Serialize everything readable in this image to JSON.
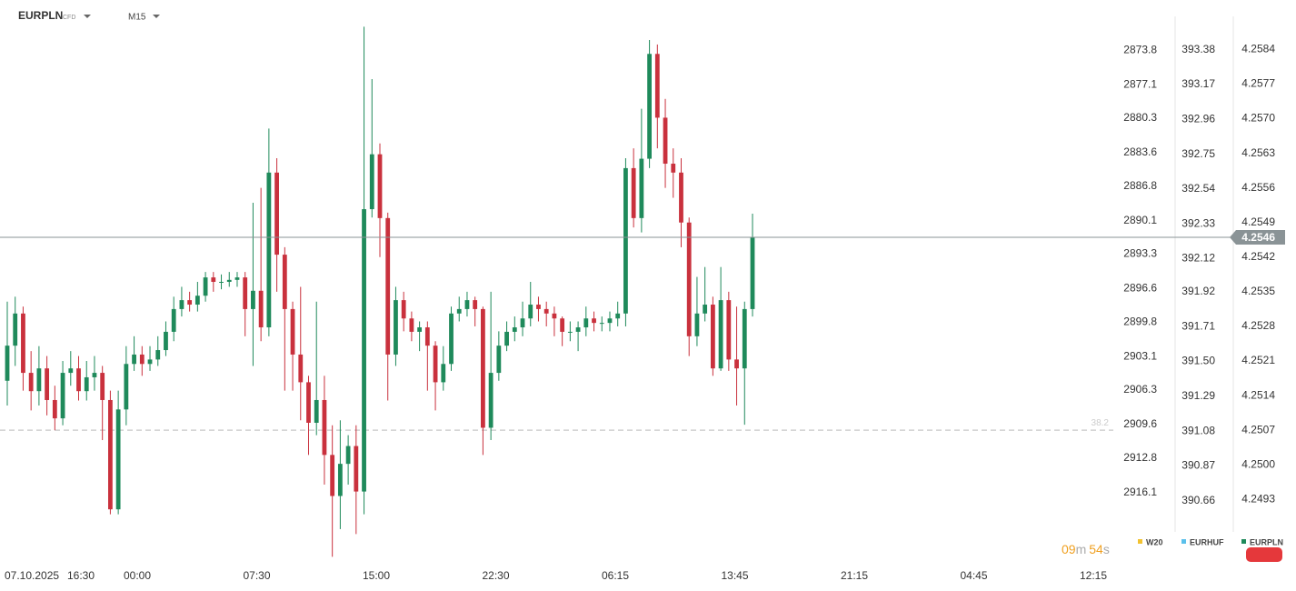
{
  "chart_data": {
    "type": "candlestick",
    "symbol": "EURPLN",
    "symbol_type": "CFD",
    "timeframe": "M15",
    "up_color": "#1f8a5b",
    "down_color": "#c9313d",
    "ylim": [
      4.248,
      4.2594
    ],
    "yticks": [
      4.2584,
      4.2577,
      {
        "value": 4.257,
        "label": "4.2570"
      },
      4.2563,
      4.2556,
      4.2549,
      4.2542,
      4.2535,
      4.2528,
      4.2521,
      4.2514,
      4.2507,
      {
        "value": 4.25,
        "label": "4.2500"
      },
      4.2493
    ],
    "compare_axes": [
      {
        "name": "W20",
        "color": "#f2c230",
        "ylim": [
          2922.9,
          2869.0
        ],
        "yticks": [
          2873.8,
          2877.1,
          2880.3,
          2883.6,
          2886.8,
          2890.1,
          2893.3,
          2896.6,
          2899.8,
          2903.1,
          2906.3,
          2909.6,
          2912.8,
          2916.1
        ]
      },
      {
        "name": "EURHUF",
        "color": "#5bc0eb",
        "ylim": [
          390.28,
          393.68
        ],
        "yticks": [
          393.38,
          393.17,
          392.96,
          392.75,
          392.54,
          392.33,
          392.12,
          391.92,
          391.71,
          {
            "value": 391.5,
            "label": "391.50"
          },
          391.29,
          391.08,
          390.87,
          390.66
        ]
      }
    ],
    "x_labels": [
      "07.10.2025",
      "16:30",
      "00:00",
      "07:30",
      "15:00",
      "22:30",
      "06:15",
      "13:45",
      "21:15",
      "04:45",
      "12:15"
    ],
    "fib_level": {
      "label": "38.2",
      "value": 4.2507
    },
    "countdown": [
      "09",
      "m",
      "54",
      "s"
    ],
    "open": [
      4.2517,
      4.25241,
      4.25306,
      4.25186,
      4.25149,
      4.25195,
      4.25131,
      4.25094,
      4.25186,
      4.25195,
      4.25149,
      4.25177,
      4.25186,
      4.25131,
      4.2491,
      4.25112,
      4.25204,
      4.25223,
      4.25204,
      4.25213,
      4.25232,
      4.25269,
      4.25315,
      4.25333,
      4.25324,
      4.25342,
      4.25379,
      4.2537,
      4.2537,
      4.25374,
      4.25379,
      4.25315,
      4.25352,
      4.25278,
      4.25591,
      4.25425,
      4.25315,
      4.25223,
      4.25167,
      4.25085,
      4.25131,
      4.2502,
      4.24937,
      4.25002,
      4.25038,
      4.24946,
      4.25517,
      4.25628,
      4.25499,
      4.25223,
      4.25333,
      4.25296,
      4.25269,
      4.25278,
      4.25241,
      4.25167,
      4.25204,
      4.25306,
      4.25315,
      4.25333,
      4.25315,
      4.25075,
      4.25186,
      4.25241,
      4.25269,
      4.25278,
      4.25296,
      4.25324,
      4.25315,
      4.25306,
      4.25296,
      4.25269,
      4.25269,
      4.25278,
      4.25296,
      4.25287,
      4.25287,
      4.25296,
      4.25306,
      4.256,
      4.25499,
      4.25619,
      4.25831,
      4.25702,
      4.25609,
      4.25591,
      4.2549,
      4.2526,
      4.25306,
      4.25324,
      4.25195,
      4.25333,
      4.25213,
      4.25195,
      4.25315
    ],
    "high": [
      4.2533,
      4.2534,
      4.2532,
      4.2523,
      4.2524,
      4.2522,
      4.2516,
      4.2521,
      4.2523,
      4.2522,
      4.2521,
      4.2522,
      4.252,
      4.2515,
      4.2515,
      4.2524,
      4.2526,
      4.2524,
      4.2524,
      4.2526,
      4.2529,
      4.2534,
      4.2536,
      4.2535,
      4.2537,
      4.2539,
      4.2539,
      4.25385,
      4.2539,
      4.2539,
      4.2539,
      4.2553,
      4.2556,
      4.2568,
      4.2562,
      4.2544,
      4.2533,
      4.2536,
      4.2518,
      4.2533,
      4.2518,
      4.2508,
      4.2509,
      4.2506,
      4.2508,
      4.25886,
      4.2578,
      4.2565,
      4.2551,
      4.2536,
      4.2535,
      4.2531,
      4.2529,
      4.2529,
      4.2525,
      4.2524,
      4.2532,
      4.2534,
      4.2535,
      4.2534,
      4.2532,
      4.2535,
      4.2527,
      4.2529,
      4.253,
      4.2533,
      4.2537,
      4.2534,
      4.2533,
      4.2532,
      4.253,
      4.2529,
      4.2529,
      4.2532,
      4.2531,
      4.253,
      4.2531,
      4.2533,
      4.2562,
      4.2564,
      4.2572,
      4.25859,
      4.2585,
      4.2574,
      4.2564,
      4.2562,
      4.255,
      4.2538,
      4.254,
      4.2534,
      4.254,
      4.2535,
      4.2532,
      4.2533,
      4.25508
    ],
    "low": [
      4.2512,
      4.252,
      4.2515,
      4.2511,
      4.2512,
      4.251,
      4.2507,
      4.2508,
      4.2516,
      4.2513,
      4.2513,
      4.2515,
      4.2505,
      4.249,
      4.249,
      4.2508,
      4.2519,
      4.2518,
      4.2519,
      4.252,
      4.2522,
      4.2525,
      4.253,
      4.2531,
      4.2531,
      4.2533,
      4.2535,
      4.25355,
      4.2536,
      4.2536,
      4.2526,
      4.252,
      4.2525,
      4.2526,
      4.2535,
      4.2515,
      4.2515,
      4.2509,
      4.2502,
      4.2506,
      4.2496,
      4.24814,
      4.2487,
      4.2496,
      4.2486,
      4.249,
      4.255,
      4.2542,
      4.2513,
      4.252,
      4.2527,
      4.2525,
      4.2523,
      4.2515,
      4.2511,
      4.2515,
      4.2519,
      4.2529,
      4.253,
      4.2528,
      4.2502,
      4.2505,
      4.2517,
      4.2523,
      4.2525,
      4.2526,
      4.2528,
      4.2529,
      4.2528,
      4.2526,
      4.2524,
      4.2525,
      4.2523,
      4.2526,
      4.2527,
      4.2527,
      4.2527,
      4.2528,
      4.2528,
      4.2548,
      4.2547,
      4.256,
      4.2564,
      4.2556,
      4.2554,
      4.2544,
      4.2522,
      4.2524,
      4.2529,
      4.2518,
      4.2519,
      4.2519,
      4.2512,
      4.25081,
      4.253
    ],
    "close": [
      4.25241,
      4.25306,
      4.25186,
      4.25149,
      4.25195,
      4.25131,
      4.25094,
      4.25186,
      4.25195,
      4.25149,
      4.25177,
      4.25186,
      4.25131,
      4.2491,
      4.25112,
      4.25204,
      4.25223,
      4.25204,
      4.25213,
      4.25232,
      4.25269,
      4.25315,
      4.25333,
      4.25324,
      4.25342,
      4.25379,
      4.2537,
      4.2537,
      4.25374,
      4.25379,
      4.25315,
      4.25352,
      4.25278,
      4.25591,
      4.25425,
      4.25315,
      4.25223,
      4.25167,
      4.25085,
      4.25131,
      4.2502,
      4.24937,
      4.25002,
      4.25038,
      4.24946,
      4.25517,
      4.25628,
      4.25499,
      4.25223,
      4.25333,
      4.25296,
      4.25269,
      4.25278,
      4.25241,
      4.25167,
      4.25204,
      4.25306,
      4.25315,
      4.25333,
      4.25315,
      4.25075,
      4.25186,
      4.25241,
      4.25269,
      4.25278,
      4.25296,
      4.25324,
      4.25315,
      4.25306,
      4.25296,
      4.25269,
      4.25269,
      4.25278,
      4.25296,
      4.25287,
      4.25287,
      4.25296,
      4.25306,
      4.256,
      4.25499,
      4.25619,
      4.25831,
      4.25702,
      4.25609,
      4.25591,
      4.2549,
      4.2526,
      4.25306,
      4.25324,
      4.25195,
      4.25333,
      4.25213,
      4.25195,
      4.25315,
      4.2546
    ]
  }
}
